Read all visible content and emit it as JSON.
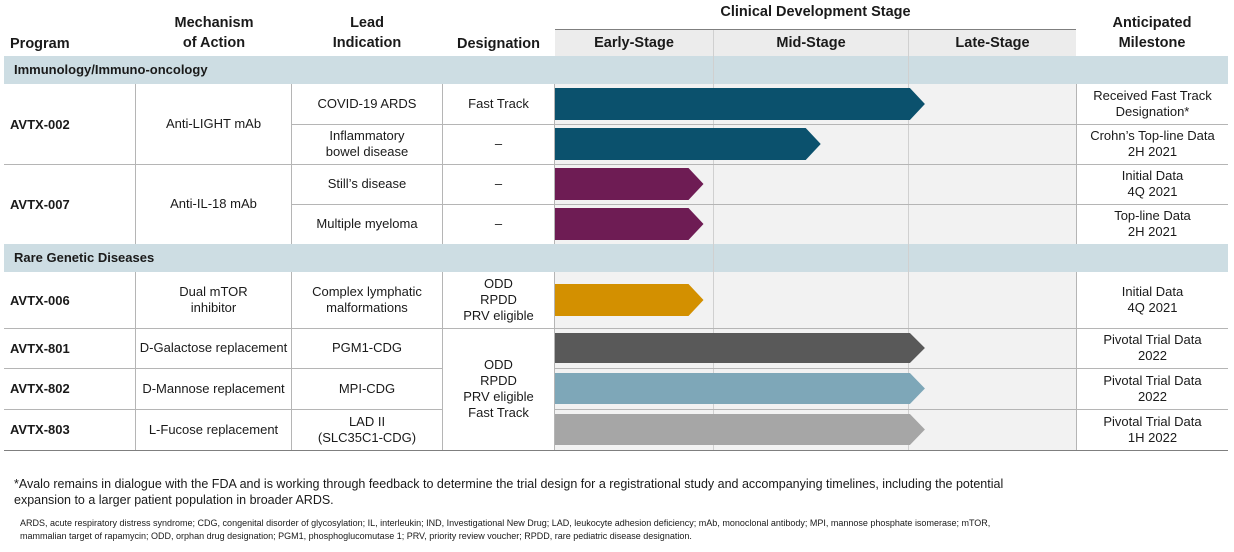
{
  "headers": {
    "program": "Program",
    "mechanism": "Mechanism\nof Action",
    "lead_indication": "Lead\nIndication",
    "designation": "Designation",
    "clinical_stage": "Clinical Development Stage",
    "milestone": "Anticipated\nMilestone",
    "stages": [
      "Early-Stage",
      "Mid-Stage",
      "Late-Stage"
    ]
  },
  "sections": {
    "immunology": "Immunology/Immuno-oncology",
    "rare_genetic": "Rare Genetic Diseases"
  },
  "programs": {
    "avtx002": "AVTX-002",
    "avtx007": "AVTX-007",
    "avtx006": "AVTX-006",
    "avtx801": "AVTX-801",
    "avtx802": "AVTX-802",
    "avtx803": "AVTX-803"
  },
  "mechanisms": {
    "avtx002": "Anti-LIGHT mAb",
    "avtx007": "Anti-IL-18 mAb",
    "avtx006": "Dual mTOR\ninhibitor",
    "avtx801": "D-Galactose replacement",
    "avtx802": "D-Mannose replacement",
    "avtx803": "L-Fucose replacement"
  },
  "rows": [
    {
      "indication": "COVID-19 ARDS",
      "designation": "Fast Track",
      "milestone": "Received Fast Track\nDesignation*",
      "color": "#0b516d",
      "progress": 0.71
    },
    {
      "indication": "Inflammatory\nbowel disease",
      "designation": "–",
      "milestone": "Crohn’s Top-line Data\n2H 2021",
      "color": "#0b516d",
      "progress": 0.51
    },
    {
      "indication": "Still’s disease",
      "designation": "–",
      "milestone": "Initial Data\n4Q 2021",
      "color": "#6e1c54",
      "progress": 0.285
    },
    {
      "indication": "Multiple myeloma",
      "designation": "–",
      "milestone": "Top-line Data\n2H 2021",
      "color": "#6e1c54",
      "progress": 0.285
    },
    {
      "indication": "Complex lymphatic\nmalformations",
      "designation": "ODD\nRPDD\nPRV eligible",
      "milestone": "Initial Data\n4Q 2021",
      "color": "#d39000",
      "progress": 0.285
    },
    {
      "indication": "PGM1-CDG",
      "milestone": "Pivotal Trial Data\n2022",
      "color": "#595959",
      "progress": 0.71
    },
    {
      "indication": "MPI-CDG",
      "milestone": "Pivotal Trial Data\n2022",
      "color": "#7ea7b8",
      "progress": 0.71
    },
    {
      "indication": "LAD II\n(SLC35C1-CDG)",
      "milestone": "Pivotal Trial Data\n1H 2022",
      "color": "#a6a6a6",
      "progress": 0.71
    }
  ],
  "shared_designation": "ODD\nRPDD\nPRV eligible\nFast Track",
  "footnote": "*Avalo remains in dialogue with the FDA and is working through feedback to determine the trial design for a registrational study and accompanying timelines, including the potential expansion to a larger patient population in broader ARDS.",
  "abbreviations": "ARDS, acute respiratory distress syndrome; CDG, congenital disorder of glycosylation; IL, interleukin; IND, Investigational New Drug; LAD, leukocyte adhesion deficiency; mAb, monoclonal antibody; MPI, mannose phosphate isomerase; mTOR, mammalian target of rapamycin; ODD, orphan drug designation; PGM1, phosphoglucomutase 1; PRV, priority review voucher; RPDD, rare pediatric disease designation."
}
